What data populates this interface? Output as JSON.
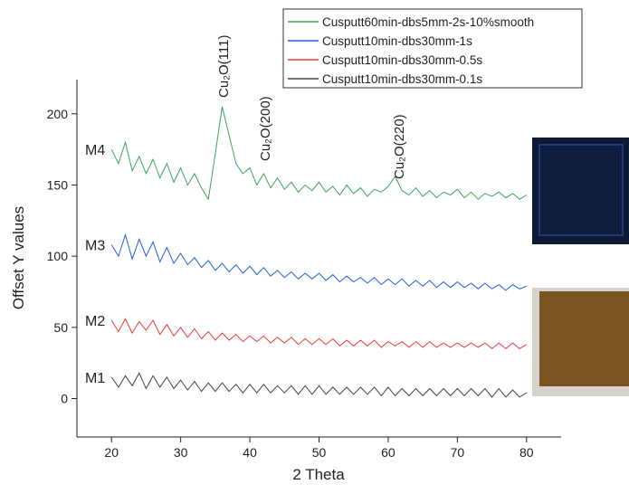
{
  "chart_data": {
    "type": "line",
    "xlabel": "2 Theta",
    "ylabel": "Offset Y values",
    "xlim": [
      15,
      85
    ],
    "ylim": [
      -27,
      224
    ],
    "xticks": [
      20,
      30,
      40,
      50,
      60,
      70,
      80
    ],
    "yticks": [
      0,
      50,
      100,
      150,
      200
    ],
    "legend": "upper right",
    "annotations": [
      "Cu₂O(111)",
      "Cu₂O(200)",
      "Cu₂O(220)"
    ],
    "x": [
      20,
      21,
      22,
      23,
      24,
      25,
      26,
      27,
      28,
      29,
      30,
      31,
      32,
      33,
      34,
      35,
      36,
      37,
      38,
      39,
      40,
      41,
      42,
      43,
      44,
      45,
      46,
      47,
      48,
      49,
      50,
      51,
      52,
      53,
      54,
      55,
      56,
      57,
      58,
      59,
      60,
      61,
      62,
      63,
      64,
      65,
      66,
      67,
      68,
      69,
      70,
      71,
      72,
      73,
      74,
      75,
      76,
      77,
      78,
      79,
      80
    ],
    "series": [
      {
        "name": "Cusputt60min-dbs5mm-2s-10%smooth",
        "label": "M4",
        "color": "#3aa35f",
        "values": [
          175,
          165,
          180,
          160,
          170,
          158,
          168,
          155,
          165,
          152,
          162,
          150,
          158,
          148,
          140,
          172,
          205,
          185,
          165,
          158,
          162,
          150,
          158,
          148,
          155,
          147,
          152,
          145,
          150,
          146,
          152,
          145,
          149,
          143,
          150,
          144,
          148,
          142,
          147,
          145,
          149,
          156,
          146,
          143,
          148,
          142,
          146,
          141,
          145,
          143,
          147,
          141,
          145,
          140,
          144,
          142,
          145,
          141,
          144,
          140,
          143
        ]
      },
      {
        "name": "Cusputt10min-dbs30mm-1s",
        "label": "M3",
        "color": "#1f5fd6",
        "values": [
          108,
          100,
          115,
          98,
          112,
          100,
          110,
          96,
          106,
          95,
          102,
          94,
          99,
          92,
          97,
          90,
          95,
          89,
          94,
          88,
          93,
          87,
          92,
          86,
          90,
          85,
          89,
          84,
          88,
          84,
          88,
          83,
          87,
          82,
          86,
          82,
          85,
          81,
          85,
          80,
          84,
          80,
          84,
          79,
          83,
          79,
          83,
          78,
          82,
          78,
          82,
          78,
          81,
          77,
          81,
          77,
          80,
          76,
          80,
          77,
          79
        ]
      },
      {
        "name": "Cusputt10min-dbs30mm-0.5s",
        "label": "M2",
        "color": "#e8393d",
        "values": [
          55,
          47,
          56,
          46,
          54,
          48,
          55,
          45,
          52,
          44,
          50,
          43,
          49,
          42,
          47,
          41,
          46,
          41,
          45,
          40,
          44,
          40,
          44,
          39,
          43,
          39,
          43,
          38,
          42,
          38,
          42,
          38,
          42,
          37,
          41,
          37,
          41,
          37,
          41,
          36,
          40,
          37,
          40,
          36,
          40,
          36,
          40,
          36,
          39,
          36,
          39,
          36,
          39,
          36,
          39,
          35,
          39,
          35,
          39,
          35,
          38
        ]
      },
      {
        "name": "Cusputt10min-dbs30mm-0.1s",
        "label": "M1",
        "color": "#444444",
        "values": [
          15,
          8,
          16,
          9,
          18,
          7,
          16,
          8,
          15,
          7,
          13,
          6,
          12,
          5,
          11,
          5,
          11,
          5,
          10,
          4,
          10,
          4,
          10,
          4,
          9,
          4,
          9,
          3,
          9,
          3,
          9,
          3,
          8,
          3,
          8,
          3,
          8,
          3,
          8,
          2,
          8,
          2,
          7,
          2,
          7,
          2,
          7,
          2,
          7,
          2,
          7,
          2,
          7,
          2,
          7,
          1,
          7,
          1,
          6,
          1,
          4
        ]
      }
    ]
  }
}
